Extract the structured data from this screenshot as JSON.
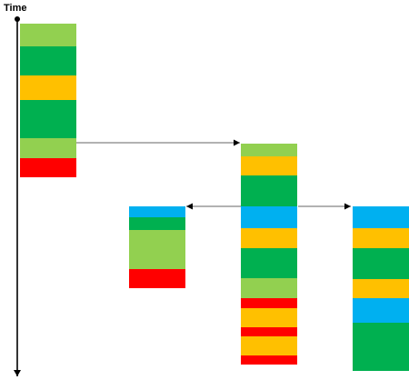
{
  "axis": {
    "label": "Time"
  },
  "palette": {
    "light-green": "#92D050",
    "green": "#00B050",
    "amber": "#FFC000",
    "red": "#FF0000",
    "blue": "#00B0F0"
  },
  "columns": [
    {
      "name": "column-1",
      "segments": [
        {
          "color": "light-green",
          "duration": 25
        },
        {
          "color": "green",
          "duration": 32
        },
        {
          "color": "amber",
          "duration": 27
        },
        {
          "color": "green",
          "duration": 42
        },
        {
          "color": "light-green",
          "duration": 22
        },
        {
          "color": "red",
          "duration": 21
        }
      ]
    },
    {
      "name": "column-3",
      "segments": [
        {
          "color": "light-green",
          "duration": 14
        },
        {
          "color": "amber",
          "duration": 21
        },
        {
          "color": "green",
          "duration": 34
        },
        {
          "color": "blue",
          "duration": 24
        },
        {
          "color": "amber",
          "duration": 22
        },
        {
          "color": "green",
          "duration": 33
        },
        {
          "color": "light-green",
          "duration": 22
        },
        {
          "color": "red",
          "duration": 11
        },
        {
          "color": "amber",
          "duration": 21
        },
        {
          "color": "red",
          "duration": 10
        },
        {
          "color": "amber",
          "duration": 21
        },
        {
          "color": "red",
          "duration": 10
        }
      ]
    },
    {
      "name": "column-2",
      "segments": [
        {
          "color": "blue",
          "duration": 12
        },
        {
          "color": "green",
          "duration": 14
        },
        {
          "color": "light-green",
          "duration": 43
        },
        {
          "color": "red",
          "duration": 21
        }
      ]
    },
    {
      "name": "column-4",
      "segments": [
        {
          "color": "blue",
          "duration": 24
        },
        {
          "color": "amber",
          "duration": 22
        },
        {
          "color": "green",
          "duration": 34
        },
        {
          "color": "amber",
          "duration": 21
        },
        {
          "color": "blue",
          "duration": 27
        },
        {
          "color": "green",
          "duration": 53
        }
      ]
    }
  ],
  "connectors": [
    {
      "from": "column-1",
      "to": "column-3"
    },
    {
      "from": "column-3",
      "to": "column-2"
    },
    {
      "from": "column-3",
      "to": "column-4"
    }
  ]
}
